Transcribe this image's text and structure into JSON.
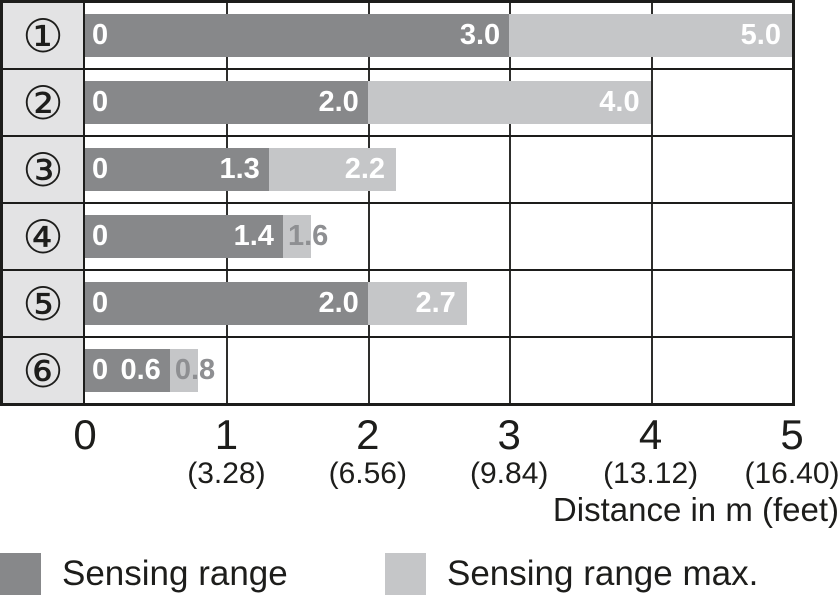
{
  "chart_data": {
    "type": "bar",
    "orientation": "horizontal-stacked",
    "categories": [
      "①",
      "②",
      "③",
      "④",
      "⑤",
      "⑥"
    ],
    "series": [
      {
        "name": "Sensing range",
        "color": "#87888a",
        "values": [
          3.0,
          2.0,
          1.3,
          1.4,
          2.0,
          0.6
        ]
      },
      {
        "name": "Sensing range max.",
        "color": "#c5c6c8",
        "values": [
          5.0,
          4.0,
          2.2,
          1.6,
          2.7,
          0.8
        ]
      }
    ],
    "xlabel": "Distance in m (feet)",
    "xlim": [
      0,
      5
    ],
    "grid": "on",
    "legend_position": "bottom",
    "xticks": [
      {
        "m": "0",
        "feet": ""
      },
      {
        "m": "1",
        "feet": "(3.28)"
      },
      {
        "m": "2",
        "feet": "(6.56)"
      },
      {
        "m": "3",
        "feet": "(9.84)"
      },
      {
        "m": "4",
        "feet": "(13.12)"
      },
      {
        "m": "5",
        "feet": "(16.40)"
      }
    ]
  },
  "rows": [
    {
      "zero": "0",
      "sensing": "3.0",
      "max": "5.0",
      "max_label_style": "inside"
    },
    {
      "zero": "0",
      "sensing": "2.0",
      "max": "4.0",
      "max_label_style": "inside"
    },
    {
      "zero": "0",
      "sensing": "1.3",
      "max": "2.2",
      "max_label_style": "inside"
    },
    {
      "zero": "0",
      "sensing": "1.4",
      "max": "1.6",
      "max_label_style": "outside-gray"
    },
    {
      "zero": "0",
      "sensing": "2.0",
      "max": "2.7",
      "max_label_style": "inside"
    },
    {
      "zero": "0",
      "sensing": "0.6",
      "max": "0.8",
      "max_label_style": "outside-gray"
    }
  ],
  "legend": [
    {
      "label": "Sensing range",
      "color": "#87888a"
    },
    {
      "label": "Sensing range max.",
      "color": "#c5c6c8"
    }
  ],
  "colors": {
    "bar_dark": "#87888a",
    "bar_light": "#c5c6c8",
    "row_header_bg": "#e3e3e4",
    "border": "#1d1d1b",
    "gray_value_text": "#8e8f92"
  }
}
